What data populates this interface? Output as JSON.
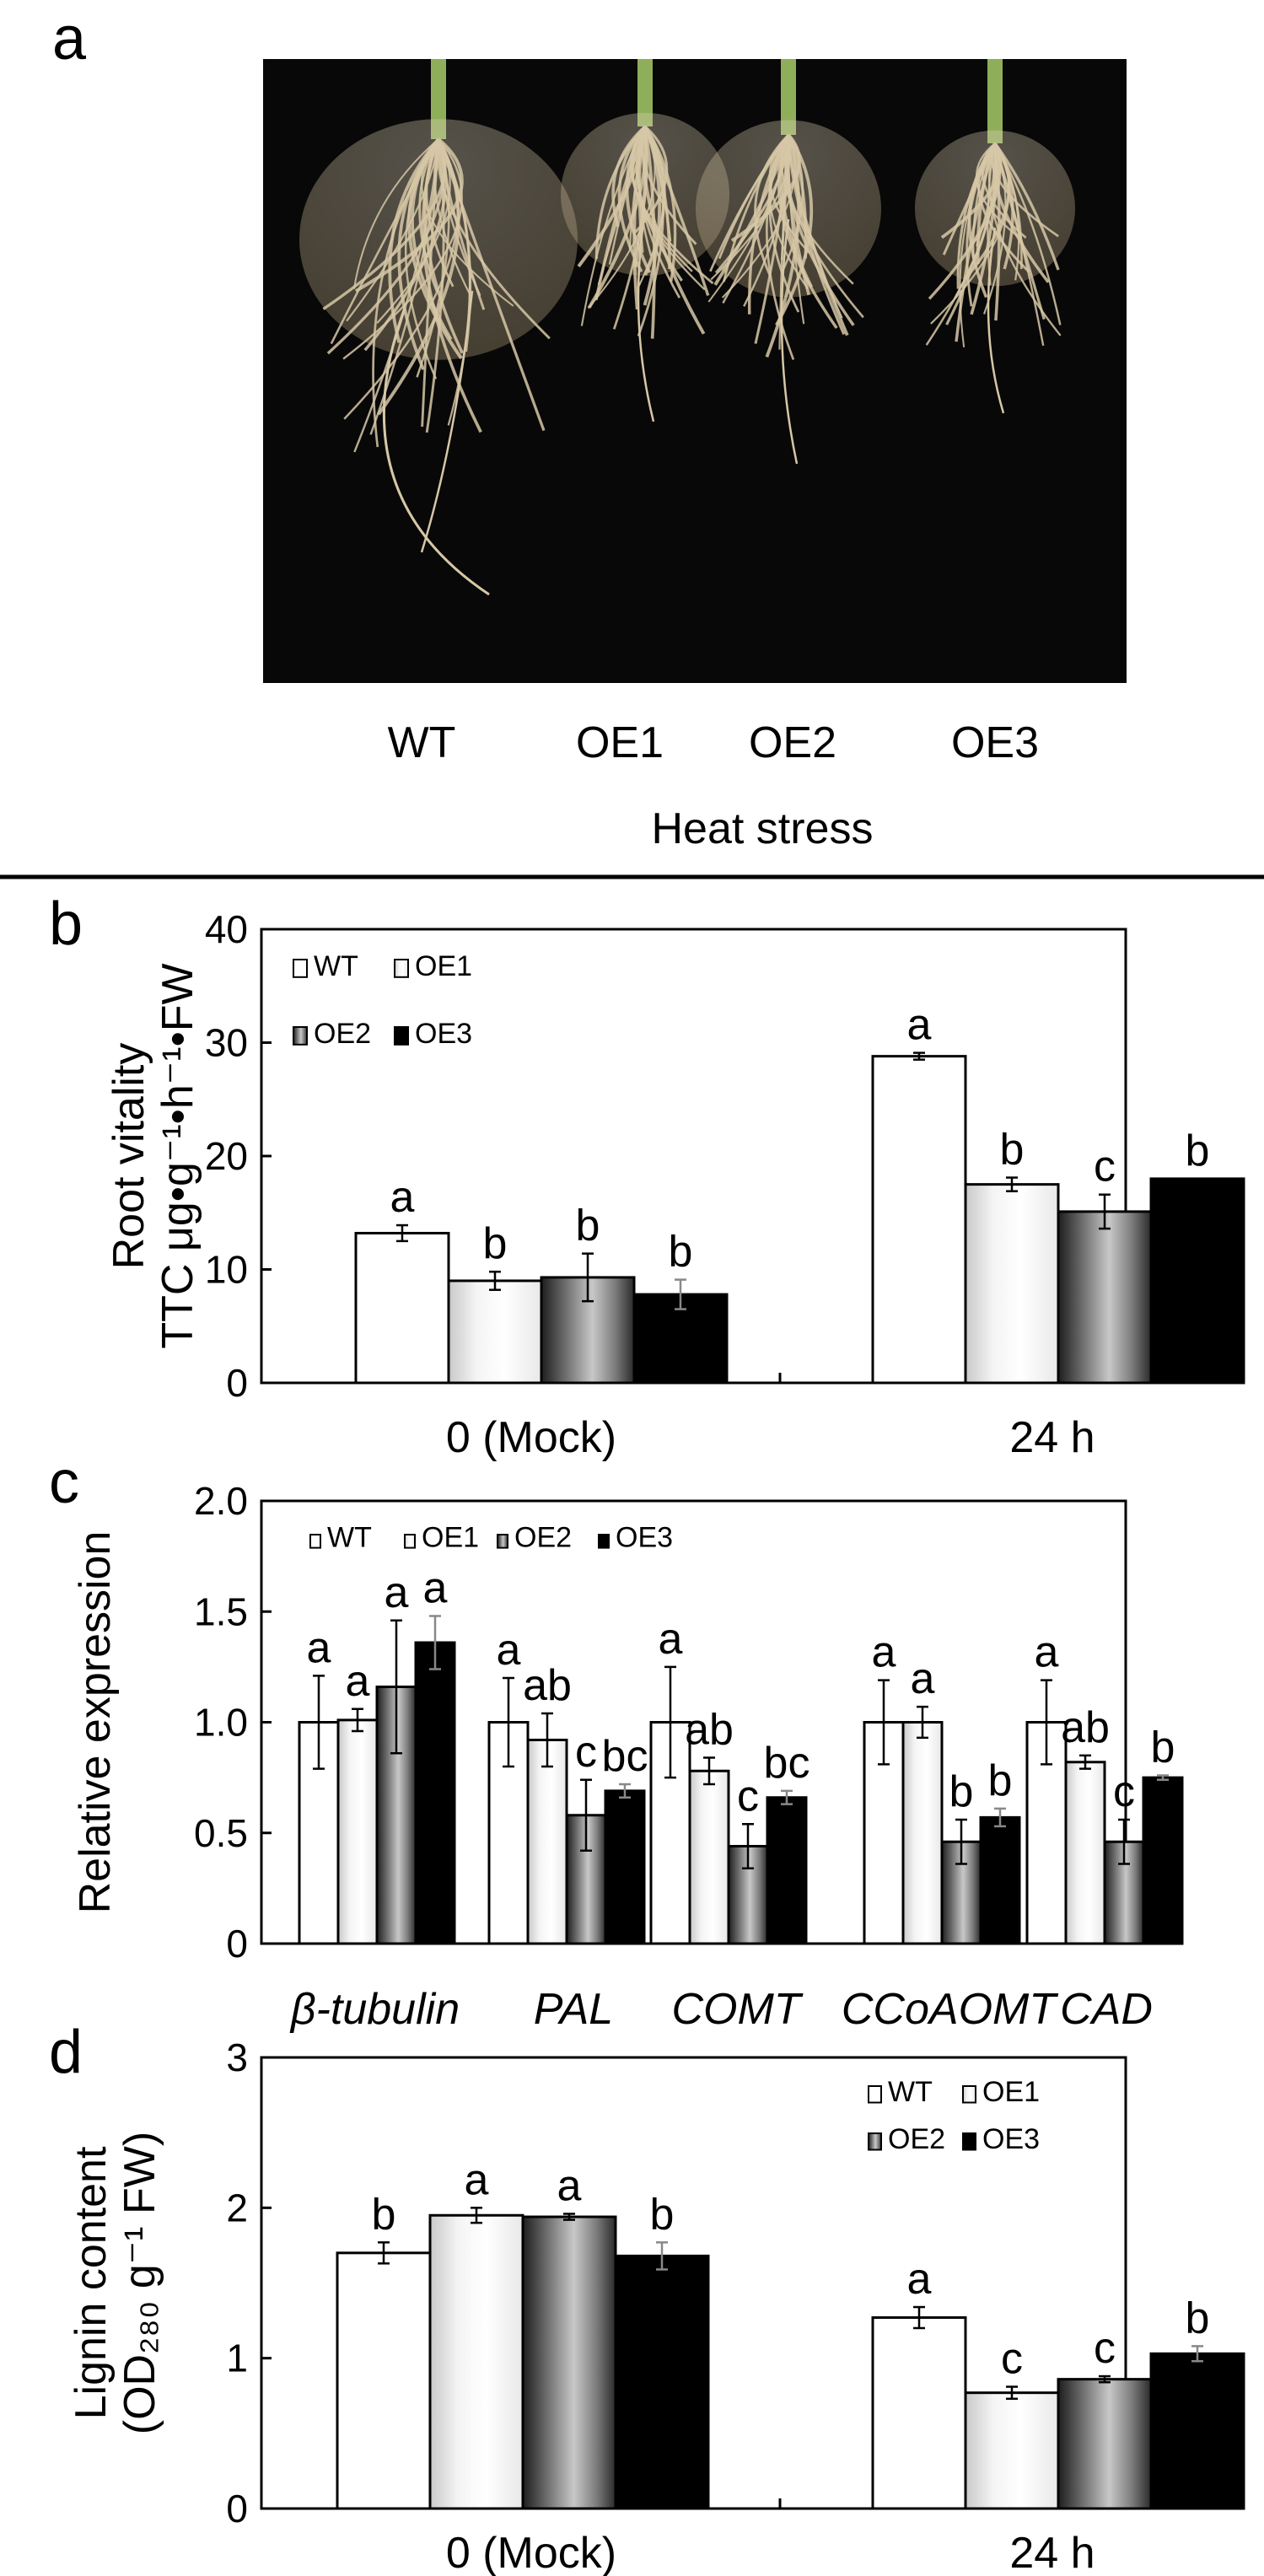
{
  "figure": {
    "panel_labels": [
      "a",
      "b",
      "c",
      "d"
    ],
    "colors": {
      "bar_outline": "#000000",
      "photo_bg": "#080808",
      "root": "#d6c7a6",
      "stem": "#8fae5a"
    }
  },
  "panel_a": {
    "sample_labels": [
      "WT",
      "OE1",
      "OE2",
      "OE3"
    ],
    "caption": "Heat stress"
  },
  "chart_data": [
    {
      "panel": "b",
      "type": "bar",
      "title": "",
      "xlabel": "",
      "ylabel_lines": [
        "Root vitality",
        "TTC μg•g⁻¹•h⁻¹•FW"
      ],
      "ylim": [
        0,
        40
      ],
      "yticks": [
        0,
        10,
        20,
        30,
        40
      ],
      "categories": [
        "0 (Mock)",
        "24 h"
      ],
      "series": [
        {
          "name": "WT",
          "fill": "white",
          "values": [
            13.2,
            28.8
          ],
          "errors": [
            0.7,
            0.3
          ],
          "letters": [
            "a",
            "a"
          ]
        },
        {
          "name": "OE1",
          "fill": "light",
          "values": [
            9.0,
            17.5
          ],
          "errors": [
            0.8,
            0.6
          ],
          "letters": [
            "b",
            "b"
          ]
        },
        {
          "name": "OE2",
          "fill": "grey",
          "values": [
            9.3,
            15.1
          ],
          "errors": [
            2.1,
            1.5
          ],
          "letters": [
            "b",
            "c"
          ]
        },
        {
          "name": "OE3",
          "fill": "black",
          "values": [
            7.8,
            18.0
          ],
          "errors": [
            1.3,
            0.0
          ],
          "letters": [
            "b",
            "b"
          ]
        }
      ],
      "legend_position": "top-left"
    },
    {
      "panel": "c",
      "type": "bar",
      "title": "",
      "xlabel": "",
      "ylabel_lines": [
        "Relative expression"
      ],
      "ylim": [
        0,
        2.0
      ],
      "yticks": [
        "0",
        "0.5",
        "1.0",
        "1.5",
        "2.0"
      ],
      "categories": [
        "β-tubulin",
        "PAL",
        "COMT",
        "CCoAOMT",
        "CAD"
      ],
      "series": [
        {
          "name": "WT",
          "fill": "white",
          "values": [
            1.0,
            1.0,
            1.0,
            1.0,
            1.0
          ],
          "errors": [
            0.21,
            0.2,
            0.25,
            0.19,
            0.19
          ],
          "letters": [
            "a",
            "a",
            "a",
            "a",
            "a"
          ]
        },
        {
          "name": "OE1",
          "fill": "light",
          "values": [
            1.01,
            0.92,
            0.78,
            1.0,
            0.82
          ],
          "errors": [
            0.05,
            0.12,
            0.06,
            0.07,
            0.03
          ],
          "letters": [
            "a",
            "ab",
            "ab",
            "a",
            "ab"
          ]
        },
        {
          "name": "OE2",
          "fill": "grey",
          "values": [
            1.16,
            0.58,
            0.44,
            0.46,
            0.46
          ],
          "errors": [
            0.3,
            0.16,
            0.1,
            0.1,
            0.1
          ],
          "letters": [
            "a",
            "c",
            "c",
            "b",
            "c"
          ]
        },
        {
          "name": "OE3",
          "fill": "black",
          "values": [
            1.36,
            0.69,
            0.66,
            0.57,
            0.75
          ],
          "errors": [
            0.12,
            0.03,
            0.03,
            0.04,
            0.01
          ],
          "letters": [
            "a",
            "bc",
            "bc",
            "b",
            "b"
          ]
        }
      ],
      "legend_position": "top-left"
    },
    {
      "panel": "d",
      "type": "bar",
      "title": "",
      "xlabel": "",
      "ylabel_lines": [
        "Lignin content",
        "(OD₂₈₀ g⁻¹ FW)"
      ],
      "ylim": [
        0,
        3
      ],
      "yticks": [
        0,
        1,
        2,
        3
      ],
      "categories": [
        "0 (Mock)",
        "24 h"
      ],
      "series": [
        {
          "name": "WT",
          "fill": "white",
          "values": [
            1.7,
            1.27
          ],
          "errors": [
            0.07,
            0.07
          ],
          "letters": [
            "b",
            "a"
          ]
        },
        {
          "name": "OE1",
          "fill": "light",
          "values": [
            1.95,
            0.77
          ],
          "errors": [
            0.05,
            0.04
          ],
          "letters": [
            "a",
            "c"
          ]
        },
        {
          "name": "OE2",
          "fill": "grey",
          "values": [
            1.94,
            0.86
          ],
          "errors": [
            0.02,
            0.02
          ],
          "letters": [
            "a",
            "c"
          ]
        },
        {
          "name": "OE3",
          "fill": "black",
          "values": [
            1.68,
            1.03
          ],
          "errors": [
            0.09,
            0.05
          ],
          "letters": [
            "b",
            "b"
          ]
        }
      ],
      "legend_position": "top-right"
    }
  ]
}
